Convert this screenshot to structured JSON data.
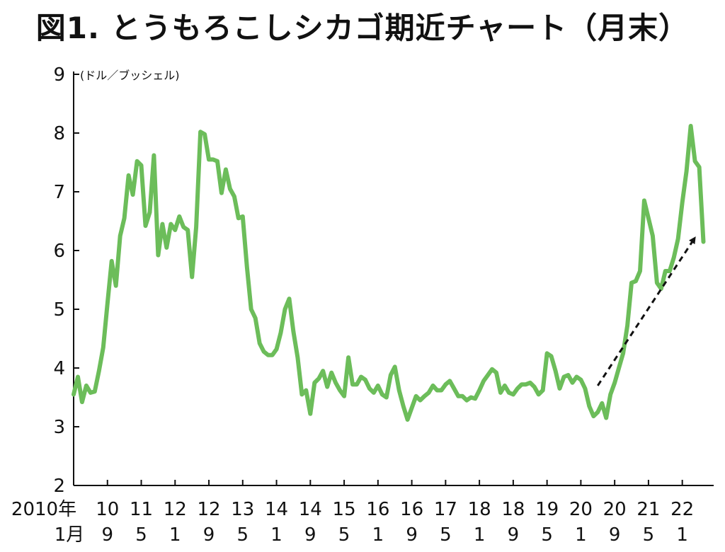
{
  "chart_data": {
    "type": "line",
    "title": "図1. とうもろこしシカゴ期近チャート（月末）",
    "ylabel": "(ドル／ブッシェル)",
    "xlabel": "",
    "ylim": [
      2,
      9
    ],
    "yticks": [
      2,
      3,
      4,
      5,
      6,
      7,
      8,
      9
    ],
    "grid": false,
    "line_color": "#6cbd5a",
    "arrow_color": "#111111",
    "x_ticks": [
      {
        "year": "2010年",
        "month": "1月",
        "index": 0
      },
      {
        "year": "10",
        "month": "9",
        "index": 8
      },
      {
        "year": "11",
        "month": "5",
        "index": 16
      },
      {
        "year": "12",
        "month": "1",
        "index": 24
      },
      {
        "year": "12",
        "month": "9",
        "index": 32
      },
      {
        "year": "13",
        "month": "5",
        "index": 40
      },
      {
        "year": "14",
        "month": "1",
        "index": 48
      },
      {
        "year": "14",
        "month": "9",
        "index": 56
      },
      {
        "year": "15",
        "month": "5",
        "index": 64
      },
      {
        "year": "16",
        "month": "1",
        "index": 72
      },
      {
        "year": "16",
        "month": "9",
        "index": 80
      },
      {
        "year": "17",
        "month": "5",
        "index": 88
      },
      {
        "year": "18",
        "month": "1",
        "index": 96
      },
      {
        "year": "18",
        "month": "9",
        "index": 104
      },
      {
        "year": "19",
        "month": "5",
        "index": 112
      },
      {
        "year": "20",
        "month": "1",
        "index": 120
      },
      {
        "year": "20",
        "month": "9",
        "index": 128
      },
      {
        "year": "21",
        "month": "5",
        "index": 136
      },
      {
        "year": "22",
        "month": "1",
        "index": 144
      }
    ],
    "series": [
      {
        "values": [
          3.55,
          3.85,
          3.42,
          3.7,
          3.58,
          3.6,
          3.95,
          4.35,
          5.1,
          5.82,
          5.4,
          6.25,
          6.55,
          7.28,
          6.95,
          7.52,
          7.45,
          6.42,
          6.65,
          7.62,
          5.92,
          6.45,
          6.05,
          6.45,
          6.35,
          6.58,
          6.4,
          6.35,
          5.55,
          6.4,
          8.02,
          7.98,
          7.55,
          7.55,
          7.52,
          6.98,
          7.38,
          7.05,
          6.92,
          6.55,
          6.58,
          5.72,
          5.0,
          4.85,
          4.42,
          4.28,
          4.22,
          4.22,
          4.32,
          4.6,
          5.0,
          5.18,
          4.62,
          4.18,
          3.55,
          3.62,
          3.22,
          3.75,
          3.82,
          3.95,
          3.68,
          3.92,
          3.75,
          3.62,
          3.52,
          4.18,
          3.72,
          3.72,
          3.85,
          3.8,
          3.65,
          3.58,
          3.7,
          3.55,
          3.5,
          3.88,
          4.02,
          3.62,
          3.35,
          3.12,
          3.32,
          3.52,
          3.45,
          3.52,
          3.58,
          3.7,
          3.62,
          3.62,
          3.72,
          3.78,
          3.65,
          3.52,
          3.52,
          3.45,
          3.5,
          3.48,
          3.62,
          3.78,
          3.88,
          3.98,
          3.92,
          3.58,
          3.7,
          3.58,
          3.55,
          3.65,
          3.72,
          3.72,
          3.75,
          3.68,
          3.55,
          3.62,
          4.25,
          4.2,
          3.95,
          3.65,
          3.85,
          3.88,
          3.75,
          3.85,
          3.8,
          3.65,
          3.35,
          3.18,
          3.25,
          3.4,
          3.15,
          3.55,
          3.75,
          4.0,
          4.25,
          4.72,
          5.45,
          5.48,
          5.65,
          6.85,
          6.55,
          6.25,
          5.45,
          5.35,
          5.65,
          5.65,
          5.88,
          6.2,
          6.82,
          7.35,
          8.12,
          7.52,
          7.42,
          6.15
        ]
      }
    ],
    "annotations": [
      {
        "type": "dashed-arrow",
        "from": {
          "index": 124,
          "value": 3.7
        },
        "to": {
          "index": 147,
          "value": 6.22
        }
      }
    ]
  }
}
